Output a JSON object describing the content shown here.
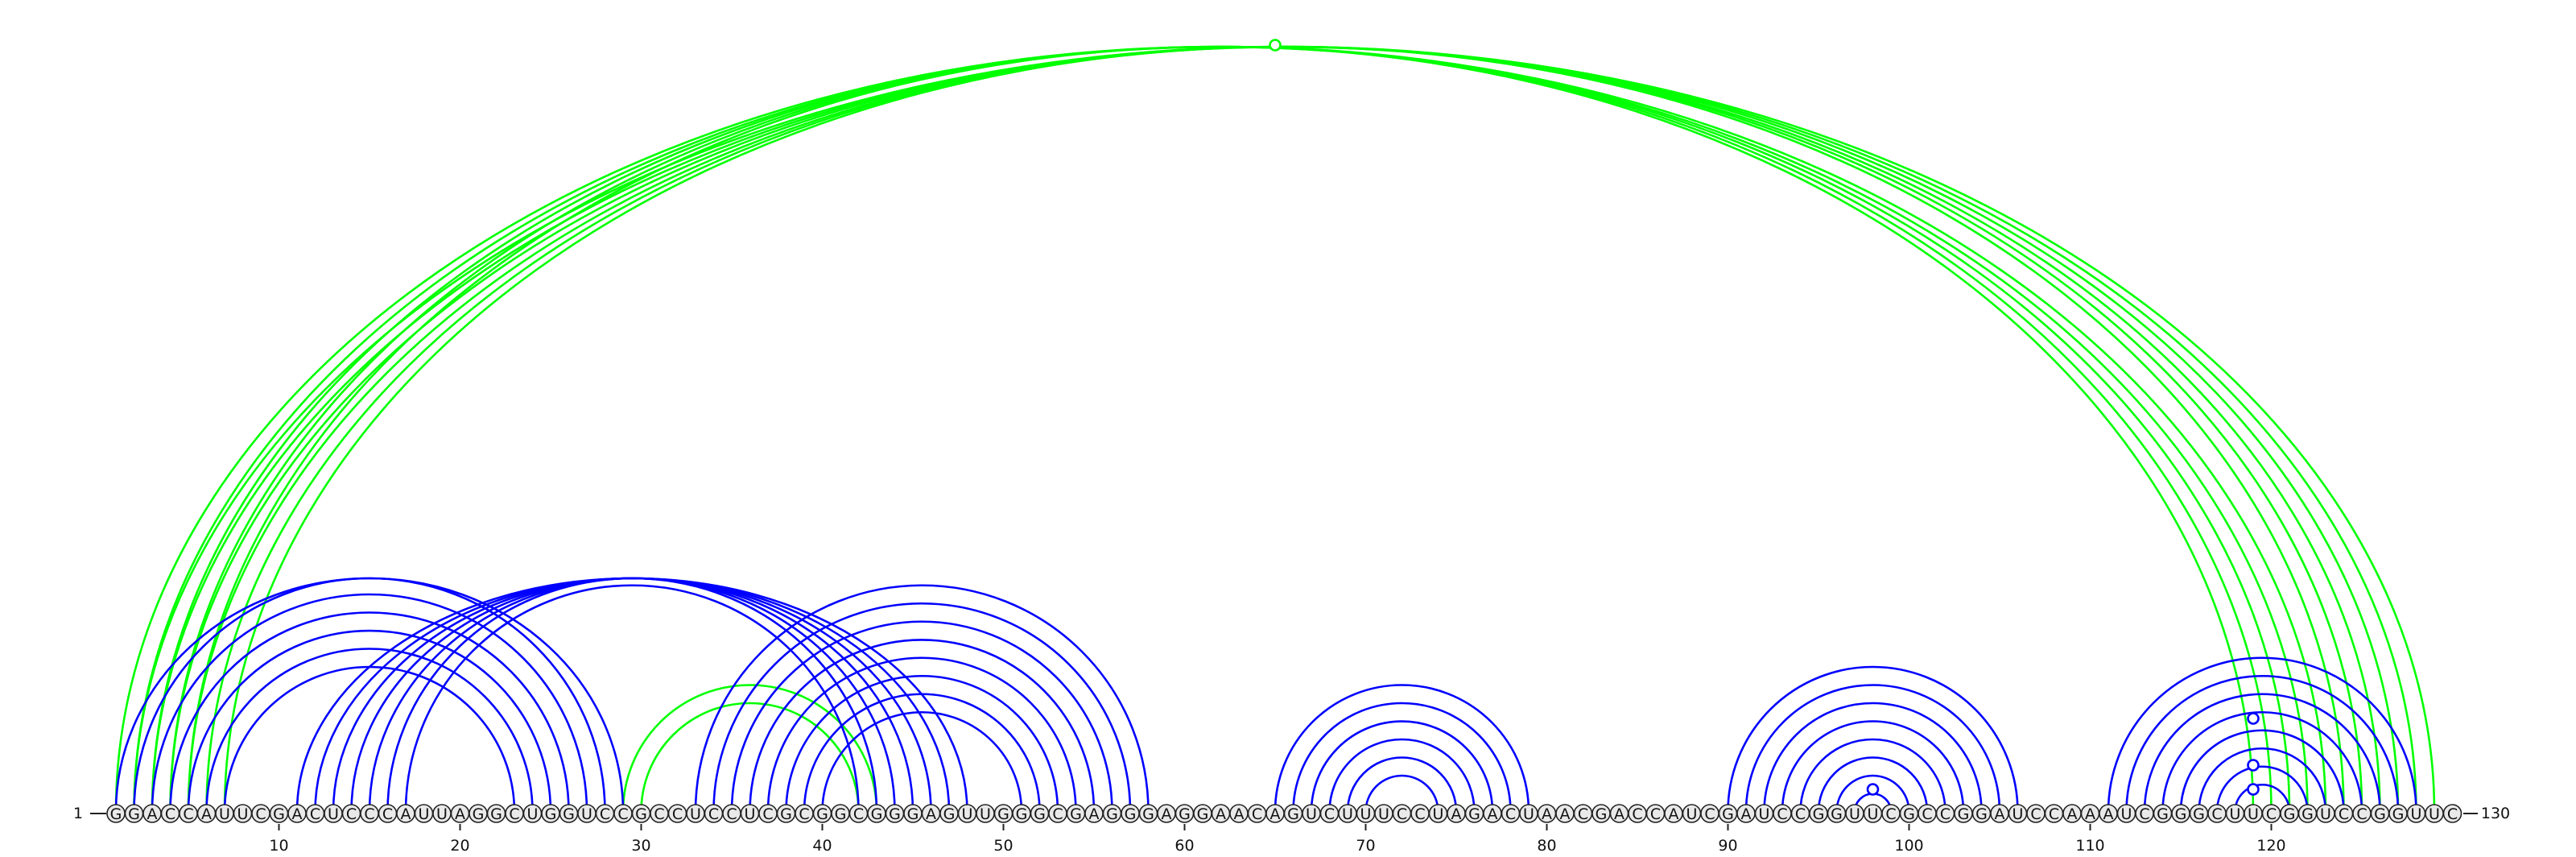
{
  "sequence": "GGACCAUUCGACUCCCAUUAGGCUGGUCCGCCUCCUCGCGGCGGGAGUUGGGCGAGGGAGGAACAGUCUUUCCUAGACUAACGACCAUCGAUCCGGUUCGCCGGAUCCAAAUCGGGCUUCGGUCCGGUUC",
  "start_label": "1",
  "end_label": "130",
  "tick_labels": [
    "10",
    "20",
    "30",
    "40",
    "50",
    "60",
    "70",
    "80",
    "90",
    "100",
    "110",
    "120"
  ],
  "colors": {
    "nested": "#0000ff",
    "pseudoknot": "#00ff00"
  },
  "helices": [
    {
      "group": "pseudoknot",
      "pairs": [
        [
          1,
          123
        ],
        [
          2,
          122
        ],
        [
          3,
          121
        ],
        [
          4,
          120
        ],
        [
          5,
          119
        ]
      ]
    },
    {
      "group": "pseudoknot",
      "pairs": [
        [
          2,
          129
        ],
        [
          3,
          128
        ],
        [
          4,
          127
        ],
        [
          5,
          126
        ],
        [
          6,
          125
        ],
        [
          7,
          124
        ]
      ]
    },
    {
      "group": "pseudoknot",
      "pairs": [
        [
          29,
          43
        ],
        [
          30,
          42
        ]
      ]
    },
    {
      "group": "nested",
      "pairs": [
        [
          1,
          29
        ],
        [
          2,
          28
        ],
        [
          3,
          27
        ],
        [
          4,
          26
        ],
        [
          5,
          25
        ],
        [
          6,
          24
        ],
        [
          7,
          23
        ]
      ]
    },
    {
      "group": "nested",
      "pairs": [
        [
          11,
          48
        ],
        [
          12,
          47
        ],
        [
          13,
          46
        ],
        [
          14,
          45
        ],
        [
          15,
          44
        ],
        [
          16,
          43
        ],
        [
          17,
          42
        ]
      ]
    },
    {
      "group": "nested",
      "pairs": [
        [
          33,
          58
        ],
        [
          34,
          57
        ],
        [
          35,
          56
        ],
        [
          36,
          55
        ],
        [
          37,
          54
        ],
        [
          38,
          53
        ],
        [
          39,
          52
        ],
        [
          40,
          51
        ]
      ]
    },
    {
      "group": "nested",
      "pairs": [
        [
          65,
          79
        ],
        [
          66,
          78
        ],
        [
          67,
          77
        ],
        [
          68,
          76
        ],
        [
          69,
          75
        ],
        [
          70,
          74
        ]
      ]
    },
    {
      "group": "nested",
      "pairs": [
        [
          90,
          106
        ],
        [
          91,
          105
        ],
        [
          92,
          104
        ],
        [
          93,
          103
        ],
        [
          94,
          102
        ],
        [
          95,
          101
        ],
        [
          96,
          100
        ],
        [
          97,
          99
        ]
      ]
    },
    {
      "group": "nested",
      "pairs": [
        [
          111,
          128
        ],
        [
          112,
          127
        ],
        [
          113,
          126
        ],
        [
          114,
          125
        ],
        [
          115,
          124
        ],
        [
          116,
          123
        ],
        [
          117,
          122
        ],
        [
          118,
          121
        ]
      ]
    }
  ],
  "bulges": [
    {
      "group": "pseudoknot",
      "position": 65
    },
    {
      "group": "nested",
      "position": 119
    },
    {
      "group": "nested",
      "position": 119
    },
    {
      "group": "nested",
      "position": 119
    },
    {
      "group": "nested",
      "position": 98
    }
  ]
}
